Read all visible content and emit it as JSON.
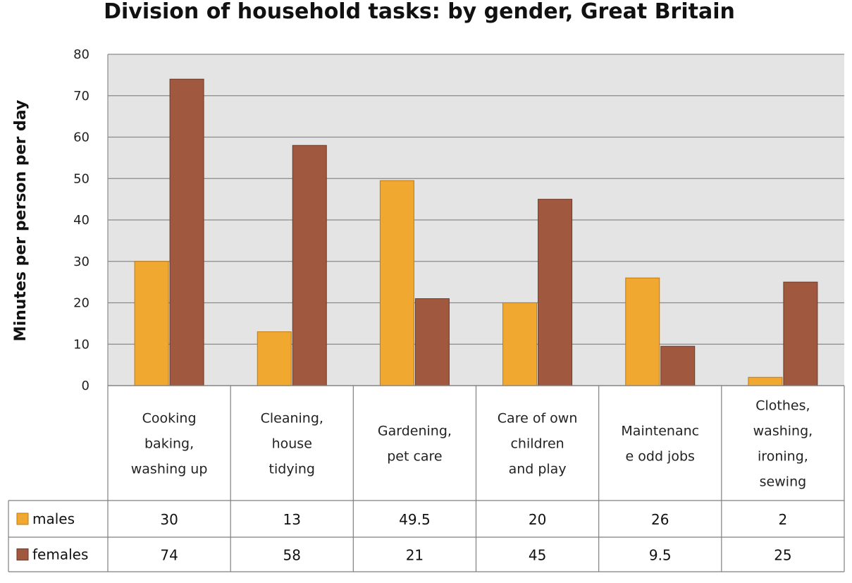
{
  "chart_data": {
    "type": "bar",
    "title": "Division of household tasks: by gender, Great Britain",
    "xlabel": "",
    "ylabel": "Minutes per person per day",
    "ylim": [
      0,
      80
    ],
    "yticks": [
      0,
      10,
      20,
      30,
      40,
      50,
      60,
      70,
      80
    ],
    "grid": true,
    "categories": [
      "Cooking baking, washing up",
      "Cleaning, house tidying",
      "Gardening, pet care",
      "Care of own children and play",
      "Maintenance odd jobs",
      "Clothes, washing, ironing, sewing"
    ],
    "category_lines": [
      [
        "Cooking",
        "baking,",
        "washing up"
      ],
      [
        "Cleaning,",
        "house",
        "tidying"
      ],
      [
        "Gardening,",
        "pet care"
      ],
      [
        "Care of own",
        "children",
        "and play"
      ],
      [
        "Maintenanc",
        "e odd jobs"
      ],
      [
        "Clothes,",
        "washing,",
        "ironing,",
        "sewing"
      ]
    ],
    "series": [
      {
        "name": "males",
        "color": "#F0A830",
        "values": [
          30,
          13,
          49.5,
          20,
          26,
          2
        ]
      },
      {
        "name": "females",
        "color": "#A0583F",
        "values": [
          74,
          58,
          21,
          45,
          9.5,
          25
        ]
      }
    ],
    "table_values": [
      [
        "30",
        "13",
        "49.5",
        "20",
        "26",
        "2"
      ],
      [
        "74",
        "58",
        "21",
        "45",
        "9.5",
        "25"
      ]
    ],
    "legend_position": "data-table"
  }
}
